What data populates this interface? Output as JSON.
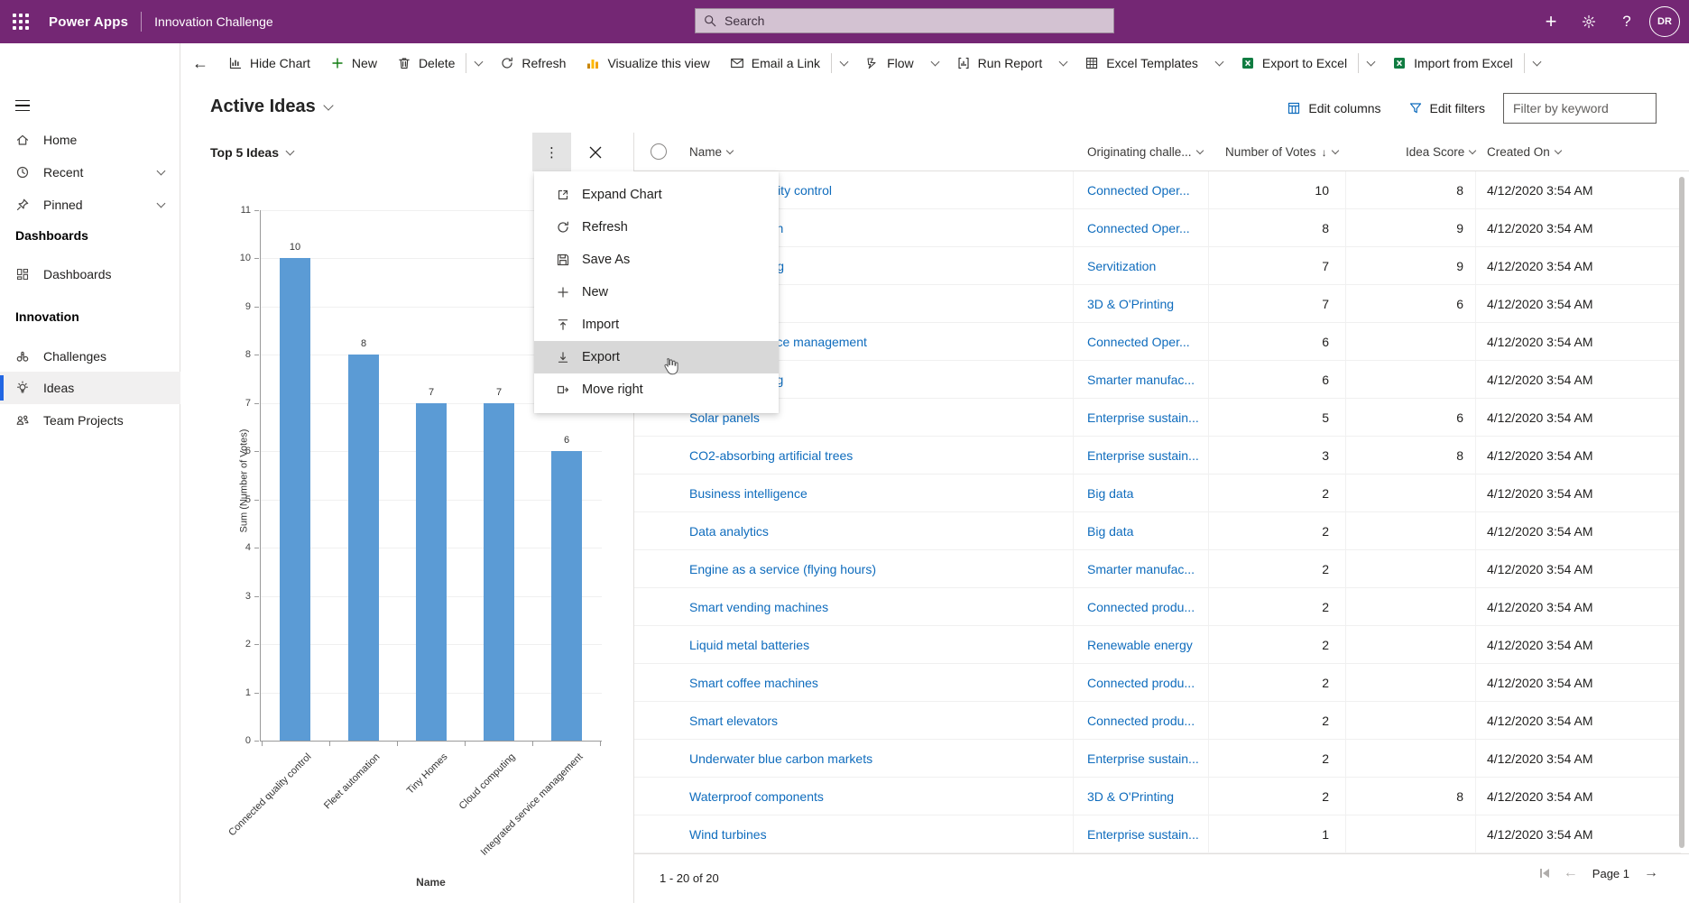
{
  "colors": {
    "brand": "#742774",
    "link": "#0f6cbd",
    "bar": "#5b9bd5",
    "nav_selected": "#2266e3",
    "excel_green": "#107c41",
    "new_green": "#107c10",
    "viz_gold": "#ffb900"
  },
  "app_bar": {
    "app_name": "Power Apps",
    "context": "Innovation Challenge",
    "search_placeholder": "Search",
    "avatar_initials": "DR",
    "right_icons": [
      "add-icon",
      "gear-icon",
      "help-icon",
      "avatar"
    ]
  },
  "command_bar": {
    "back_icon": "←",
    "items": [
      {
        "icon": "hide-chart",
        "label": "Hide Chart",
        "trail": "none"
      },
      {
        "icon": "plus",
        "label": "New",
        "trail": "none"
      },
      {
        "icon": "trash",
        "label": "Delete",
        "trail": "split"
      },
      {
        "icon": "refresh",
        "label": "Refresh",
        "trail": "none"
      },
      {
        "icon": "visualize",
        "label": "Visualize this view",
        "trail": "none"
      },
      {
        "icon": "mail",
        "label": "Email a Link",
        "trail": "split"
      },
      {
        "icon": "flow",
        "label": "Flow",
        "trail": "chevron"
      },
      {
        "icon": "report",
        "label": "Run Report",
        "trail": "chevron"
      },
      {
        "icon": "excel-grid",
        "label": "Excel Templates",
        "trail": "chevron"
      },
      {
        "icon": "excel",
        "label": "Export to Excel",
        "trail": "split"
      },
      {
        "icon": "excel",
        "label": "Import from Excel",
        "trail": "split"
      }
    ]
  },
  "view_header": {
    "title": "Active Ideas",
    "actions": [
      {
        "icon": "edit-columns",
        "label": "Edit columns"
      },
      {
        "icon": "filter",
        "label": "Edit filters"
      }
    ],
    "filter_placeholder": "Filter by keyword"
  },
  "sidebar": {
    "entries": [
      {
        "type": "item",
        "icon": "home",
        "label": "Home"
      },
      {
        "type": "item",
        "icon": "clock",
        "label": "Recent",
        "chevron": true
      },
      {
        "type": "item",
        "icon": "pin",
        "label": "Pinned",
        "chevron": true
      },
      {
        "type": "group",
        "label": "Dashboards"
      },
      {
        "type": "item",
        "icon": "dashboard",
        "label": "Dashboards"
      },
      {
        "type": "group",
        "label": "Innovation"
      },
      {
        "type": "item",
        "icon": "binoculars",
        "label": "Challenges"
      },
      {
        "type": "item",
        "icon": "lightbulb",
        "label": "Ideas",
        "selected": true
      },
      {
        "type": "item",
        "icon": "people",
        "label": "Team Projects"
      }
    ]
  },
  "chart_data": {
    "type": "bar",
    "title": "Top 5 Ideas",
    "categories": [
      "Connected quality control",
      "Fleet automation",
      "Tiny Homes",
      "Cloud computing",
      "Integrated service management"
    ],
    "values": [
      10,
      8,
      7,
      7,
      6
    ],
    "xlabel": "Name",
    "ylabel": "Sum (Number of Votes)",
    "ylim": [
      0,
      11
    ],
    "ytick_step": 1,
    "grid": true,
    "legend": false,
    "bar_color": "#5b9bd5"
  },
  "context_menu": {
    "items": [
      {
        "icon": "expand",
        "label": "Expand Chart"
      },
      {
        "icon": "refresh",
        "label": "Refresh"
      },
      {
        "icon": "save",
        "label": "Save As"
      },
      {
        "icon": "plus-gray",
        "label": "New"
      },
      {
        "icon": "import",
        "label": "Import"
      },
      {
        "icon": "export",
        "label": "Export",
        "highlighted": true
      },
      {
        "icon": "move-right",
        "label": "Move right"
      }
    ]
  },
  "table": {
    "columns": [
      {
        "label": "Name"
      },
      {
        "label": "Originating challe..."
      },
      {
        "label": "Number of Votes",
        "sorted": "desc"
      },
      {
        "label": "Idea Score"
      },
      {
        "label": "Created On"
      }
    ],
    "rows": [
      {
        "name": "Connected quality control",
        "challenge": "Connected Oper...",
        "votes": "10",
        "score": "8",
        "created": "4/12/2020 3:54 AM"
      },
      {
        "name": "Fleet automation",
        "challenge": "Connected Oper...",
        "votes": "8",
        "score": "9",
        "created": "4/12/2020 3:54 AM"
      },
      {
        "name": "Cloud computing",
        "challenge": "Servitization",
        "votes": "7",
        "score": "9",
        "created": "4/12/2020 3:54 AM"
      },
      {
        "name": "Tiny Homes",
        "challenge": "3D & O'Printing",
        "votes": "7",
        "score": "6",
        "created": "4/12/2020 3:54 AM"
      },
      {
        "name": "Integrated service management",
        "challenge": "Connected Oper...",
        "votes": "6",
        "score": "",
        "created": "4/12/2020 3:54 AM"
      },
      {
        "name": "3D glass printing",
        "challenge": "Smarter manufac...",
        "votes": "6",
        "score": "",
        "created": "4/12/2020 3:54 AM"
      },
      {
        "name": "Solar panels",
        "challenge": "Enterprise sustain...",
        "votes": "5",
        "score": "6",
        "created": "4/12/2020 3:54 AM"
      },
      {
        "name": "CO2-absorbing artificial trees",
        "challenge": "Enterprise sustain...",
        "votes": "3",
        "score": "8",
        "created": "4/12/2020 3:54 AM"
      },
      {
        "name": "Business intelligence",
        "challenge": "Big data",
        "votes": "2",
        "score": "",
        "created": "4/12/2020 3:54 AM"
      },
      {
        "name": "Data analytics",
        "challenge": "Big data",
        "votes": "2",
        "score": "",
        "created": "4/12/2020 3:54 AM"
      },
      {
        "name": "Engine as a service (flying hours)",
        "challenge": "Smarter manufac...",
        "votes": "2",
        "score": "",
        "created": "4/12/2020 3:54 AM"
      },
      {
        "name": "Smart vending machines",
        "challenge": "Connected produ...",
        "votes": "2",
        "score": "",
        "created": "4/12/2020 3:54 AM"
      },
      {
        "name": "Liquid metal batteries",
        "challenge": "Renewable energy",
        "votes": "2",
        "score": "",
        "created": "4/12/2020 3:54 AM"
      },
      {
        "name": "Smart coffee machines",
        "challenge": "Connected produ...",
        "votes": "2",
        "score": "",
        "created": "4/12/2020 3:54 AM"
      },
      {
        "name": "Smart elevators",
        "challenge": "Connected produ...",
        "votes": "2",
        "score": "",
        "created": "4/12/2020 3:54 AM"
      },
      {
        "name": "Underwater blue carbon markets",
        "challenge": "Enterprise sustain...",
        "votes": "2",
        "score": "",
        "created": "4/12/2020 3:54 AM"
      },
      {
        "name": "Waterproof components",
        "challenge": "3D & O'Printing",
        "votes": "2",
        "score": "8",
        "created": "4/12/2020 3:54 AM"
      },
      {
        "name": "Wind turbines",
        "challenge": "Enterprise sustain...",
        "votes": "1",
        "score": "",
        "created": "4/12/2020 3:54 AM"
      }
    ]
  },
  "footer": {
    "range": "1 - 20 of 20",
    "page": "Page 1"
  }
}
